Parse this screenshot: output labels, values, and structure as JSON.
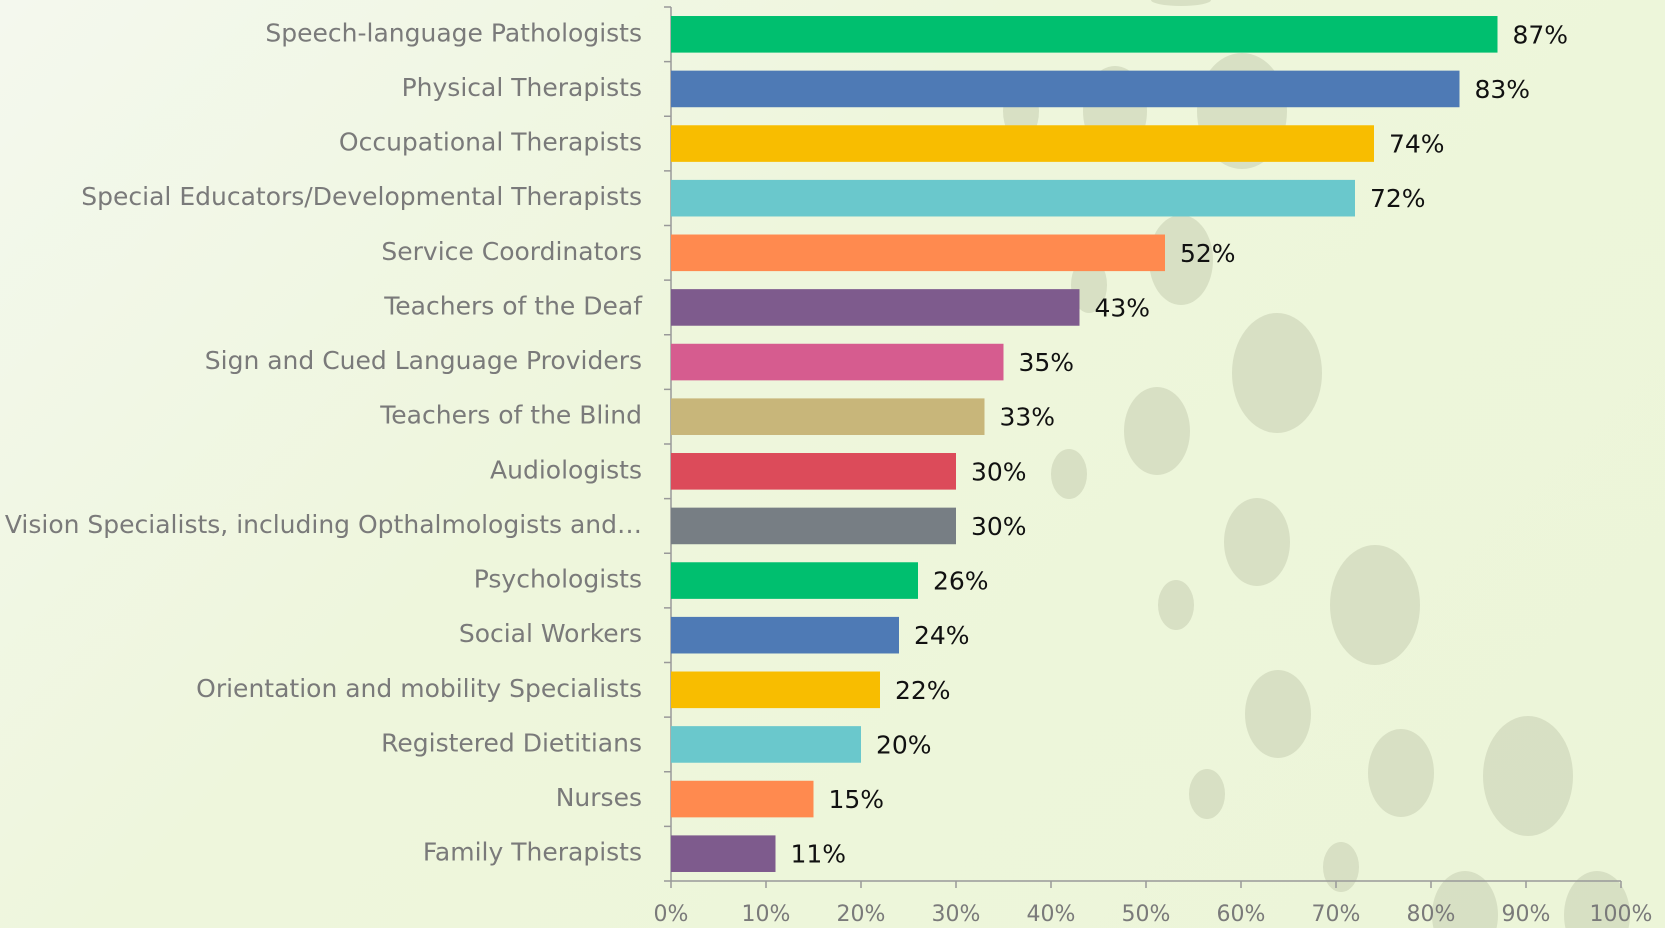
{
  "chart_data": {
    "type": "bar",
    "orientation": "horizontal",
    "categories": [
      "Speech-language Pathologists",
      "Physical Therapists",
      "Occupational Therapists",
      "Special Educators/Developmental Therapists",
      "Service Coordinators",
      "Teachers of the Deaf",
      "Sign and Cued Language Providers",
      "Teachers of the Blind",
      "Audiologists",
      "Vision Specialists, including Opthalmologists and…",
      "Psychologists",
      "Social Workers",
      "Orientation and mobility Specialists",
      "Registered Dietitians",
      "Nurses",
      "Family Therapists"
    ],
    "values": [
      87,
      83,
      74,
      72,
      52,
      43,
      35,
      33,
      30,
      30,
      26,
      24,
      22,
      20,
      15,
      11
    ],
    "value_labels": [
      "87%",
      "83%",
      "74%",
      "72%",
      "52%",
      "43%",
      "35%",
      "33%",
      "30%",
      "30%",
      "26%",
      "24%",
      "22%",
      "20%",
      "15%",
      "11%"
    ],
    "colors": [
      "#00bf6f",
      "#4e7ab5",
      "#f8bd00",
      "#6ac8cc",
      "#ff8a4f",
      "#7e5b8d",
      "#d65c8f",
      "#c8b67a",
      "#dc4b5a",
      "#777e84",
      "#00bf6f",
      "#4e7ab5",
      "#f8bd00",
      "#6ac8cc",
      "#ff8a4f",
      "#7e5b8d"
    ],
    "xlim": [
      0,
      100
    ],
    "xticks": [
      {
        "value": 0,
        "label": "0%"
      },
      {
        "value": 10,
        "label": "10%"
      },
      {
        "value": 20,
        "label": "20%"
      },
      {
        "value": 30,
        "label": "30%"
      },
      {
        "value": 40,
        "label": "40%"
      },
      {
        "value": 50,
        "label": "50%"
      },
      {
        "value": 60,
        "label": "60%"
      },
      {
        "value": 70,
        "label": "70%"
      },
      {
        "value": 80,
        "label": "80%"
      },
      {
        "value": 90,
        "label": "90%"
      },
      {
        "value": 100,
        "label": "100%"
      }
    ]
  }
}
